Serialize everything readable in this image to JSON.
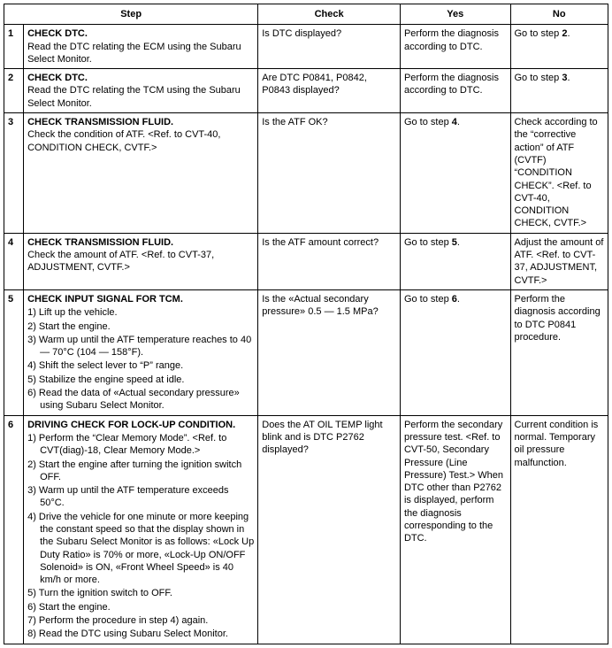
{
  "headers": {
    "step": "Step",
    "check": "Check",
    "yes": "Yes",
    "no": "No"
  },
  "rows": [
    {
      "num": "1",
      "title": "CHECK DTC.",
      "body": "Read the DTC relating the ECM using the Subaru Select Monitor.",
      "check": "Is DTC displayed?",
      "yes": "Perform the diagnosis according to DTC.",
      "no_pre": "Go to step ",
      "no_bold": "2",
      "no_post": "."
    },
    {
      "num": "2",
      "title": "CHECK DTC.",
      "body": "Read the DTC relating the TCM using the Subaru Select Monitor.",
      "check": "Are DTC P0841, P0842, P0843 displayed?",
      "yes": "Perform the diagnosis according to DTC.",
      "no_pre": "Go to step ",
      "no_bold": "3",
      "no_post": "."
    },
    {
      "num": "3",
      "title": "CHECK TRANSMISSION FLUID.",
      "body": "Check the condition of ATF. <Ref. to CVT-40, CONDITION CHECK, CVTF.>",
      "check": "Is the ATF OK?",
      "yes_pre": "Go to step ",
      "yes_bold": "4",
      "yes_post": ".",
      "no": "Check according to the “corrective action” of ATF (CVTF) “CONDITION CHECK”. <Ref. to CVT-40, CONDITION CHECK, CVTF.>"
    },
    {
      "num": "4",
      "title": "CHECK TRANSMISSION FLUID.",
      "body": "Check the amount of ATF. <Ref. to CVT-37, ADJUSTMENT, CVTF.>",
      "check": "Is the ATF amount correct?",
      "yes_pre": "Go to step ",
      "yes_bold": "5",
      "yes_post": ".",
      "no": "Adjust the amount of ATF. <Ref. to CVT-37, ADJUSTMENT, CVTF.>"
    },
    {
      "num": "5",
      "title": "CHECK INPUT SIGNAL FOR TCM.",
      "subs": [
        "1)  Lift up the vehicle.",
        "2)  Start the engine.",
        "3)  Warm up until the ATF temperature reaches to 40 — 70°C (104 — 158°F).",
        "4)  Shift the select lever to “P” range.",
        "5)  Stabilize the engine speed at idle.",
        "6)  Read the data of «Actual secondary pressure» using Subaru Select Monitor."
      ],
      "check": "Is the «Actual secondary pressure» 0.5 — 1.5 MPa?",
      "yes_pre": "Go to step ",
      "yes_bold": "6",
      "yes_post": ".",
      "no": "Perform the diagnosis according to DTC P0841 procedure."
    },
    {
      "num": "6",
      "title": "DRIVING CHECK FOR LOCK-UP CONDITION.",
      "subs": [
        "1)  Perform the “Clear Memory Mode”. <Ref. to CVT(diag)-18, Clear Memory Mode.>",
        "2)  Start the engine after turning the ignition switch OFF.",
        "3)  Warm up until the ATF temperature exceeds 50°C.",
        "4)  Drive the vehicle for one minute or more keeping the constant speed so that the display shown in the Subaru Select Monitor is as follows: «Lock Up Duty Ratio» is 70% or more, «Lock-Up ON/OFF Solenoid» is ON, «Front Wheel Speed» is 40 km/h or more.",
        "5)  Turn the ignition switch to OFF.",
        "6)  Start the engine.",
        "7)  Perform the procedure in step 4) again.",
        "8)  Read the DTC using Subaru Select Monitor."
      ],
      "check": "Does the AT OIL TEMP light blink and is DTC P2762 displayed?",
      "yes": "Perform the secondary pressure test. <Ref. to CVT-50, Secondary Pressure (Line Pressure) Test.> When DTC other than P2762 is displayed, perform the diagnosis corresponding to the DTC.",
      "no": "Current condition is normal. Temporary oil pressure malfunction."
    }
  ]
}
